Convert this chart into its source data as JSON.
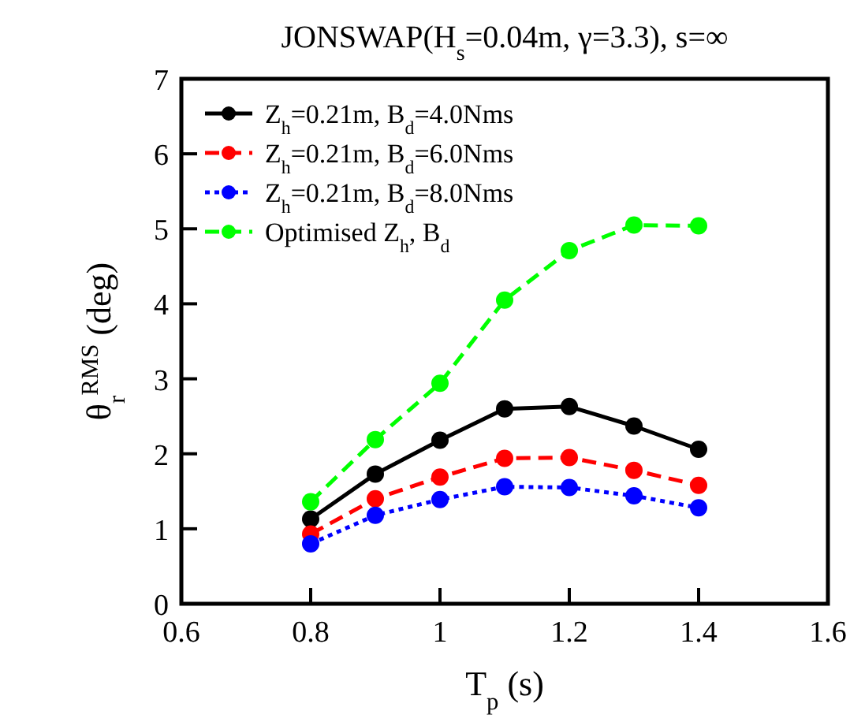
{
  "chart_data": {
    "type": "line",
    "title": "JONSWAP(H$_{s}$=0.04m, γ=3.3), s=∞",
    "xlabel": "T$_{p}$ (s)",
    "ylabel": "θ$_{r}$$^{RMS}$ (deg)",
    "x": [
      0.8,
      0.9,
      1.0,
      1.1,
      1.2,
      1.3,
      1.4
    ],
    "xlim": [
      0.6,
      1.6
    ],
    "xticks": [
      0.6,
      0.8,
      {
        "value": 1,
        "label": "1"
      },
      1.2,
      1.4,
      1.6
    ],
    "ylim": [
      0,
      7
    ],
    "yticks": [
      0,
      1,
      2,
      3,
      4,
      5,
      6,
      7
    ],
    "grid": false,
    "legend": "top left",
    "marker": "circle",
    "series": [
      {
        "name": "Z$_{h}$=0.21m, B$_{d}$=4.0Nms",
        "color": "#000000",
        "line_style": "solid",
        "values": [
          1.13,
          1.73,
          2.18,
          2.6,
          2.63,
          2.37,
          2.06
        ]
      },
      {
        "name": "Z$_{h}$=0.21m, B$_{d}$=6.0Nms",
        "color": "#ff0000",
        "line_style": "dashed",
        "values": [
          0.93,
          1.4,
          1.69,
          1.94,
          1.95,
          1.78,
          1.58
        ]
      },
      {
        "name": "Z$_{h}$=0.21m, B$_{d}$=8.0Nms",
        "color": "#0000ff",
        "line_style": "dotted",
        "values": [
          0.8,
          1.18,
          1.39,
          1.56,
          1.55,
          1.44,
          1.28
        ]
      },
      {
        "name": "Optimised Z$_{h}$, B$_{d}$",
        "color": "#00ff00",
        "line_style": "dashed",
        "values": [
          1.36,
          2.19,
          2.94,
          4.05,
          4.71,
          5.05,
          5.04
        ]
      }
    ]
  }
}
